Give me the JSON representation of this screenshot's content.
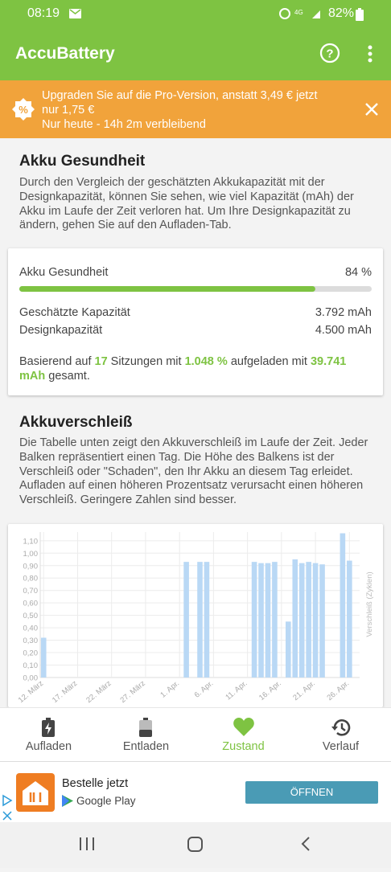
{
  "status_bar": {
    "time": "08:19",
    "battery": "82%"
  },
  "app_bar": {
    "title": "AccuBattery"
  },
  "promo": {
    "line1": "Upgraden Sie auf die Pro-Version, anstatt 3,49 € jetzt nur 1,75 €",
    "line2": "Nur heute - 14h 2m verbleibend"
  },
  "health_section": {
    "title": "Akku Gesundheit",
    "text": "Durch den Vergleich der geschätzten Akkukapazität mit der Designkapazität, können Sie sehen, wie viel Kapazität (mAh) der Akku im Laufe der Zeit verloren hat. Um Ihre Designkapazität zu ändern, gehen Sie auf den Aufladen-Tab."
  },
  "health_card": {
    "label": "Akku Gesundheit",
    "percent": 84,
    "percent_label": "84 %",
    "range": [
      0,
      100
    ],
    "rows": [
      [
        "Geschätzte Kapazität",
        "3.792 mAh"
      ],
      [
        "Designkapazität",
        "4.500 mAh"
      ]
    ],
    "summary": [
      "Basierend auf ",
      "17",
      " Sitzungen mit ",
      "1.048 %",
      " aufgeladen mit ",
      "39.741 mAh",
      " gesamt."
    ]
  },
  "wear_section": {
    "title": "Akkuverschleiß",
    "text": "Die Tabelle unten zeigt den Akkuverschleiß im Laufe der Zeit. Jeder Balken repräsentiert einen Tag. Die Höhe des Balkens ist der Verschleiß oder \"Schaden\", den Ihr Akku an diesem Tag erleidet. Aufladen auf einen höheren Prozentsatz verursacht einen höheren Verschleiß. Geringere Zahlen sind besser."
  },
  "chart_data": {
    "type": "bar",
    "y_label": "Verschleiß (Zyklen)",
    "categories": [
      "12. März",
      null,
      null,
      null,
      null,
      "17. März",
      null,
      null,
      null,
      null,
      "22. März",
      null,
      null,
      null,
      null,
      "27. März",
      null,
      null,
      null,
      null,
      "1. Apr.",
      null,
      null,
      null,
      null,
      "6. Apr.",
      null,
      null,
      null,
      null,
      "11. Apr.",
      null,
      null,
      null,
      null,
      "16. Apr.",
      null,
      null,
      null,
      null,
      "21. Apr.",
      null,
      null,
      null,
      null,
      "26. Apr.",
      null
    ],
    "values": [
      0.32,
      0,
      0,
      0,
      0,
      0,
      0,
      0,
      0,
      0,
      0,
      0,
      0,
      0,
      0,
      0,
      0,
      0,
      0,
      0,
      0,
      0.93,
      0,
      0.93,
      0.93,
      0,
      0,
      0,
      0,
      0,
      0,
      0.93,
      0.92,
      0.92,
      0.93,
      0,
      0.45,
      0.95,
      0.92,
      0.93,
      0.92,
      0.91,
      0,
      0,
      1.16,
      0.94,
      0
    ],
    "color": "#b9d8f5",
    "ylim": [
      0,
      1.17
    ],
    "yticks": [
      {
        "value": 0,
        "label": "0,00"
      },
      {
        "value": 0.1,
        "label": "0,10"
      },
      {
        "value": 0.2,
        "label": "0,20"
      },
      {
        "value": 0.3,
        "label": "0,30"
      },
      {
        "value": 0.4,
        "label": "0,40"
      },
      {
        "value": 0.5,
        "label": "0,50"
      },
      {
        "value": 0.6,
        "label": "0,60"
      },
      {
        "value": 0.7,
        "label": "0,70"
      },
      {
        "value": 0.8,
        "label": "0,80"
      },
      {
        "value": 0.9,
        "label": "0,90"
      },
      {
        "value": 1.0,
        "label": "1,00"
      },
      {
        "value": 1.1,
        "label": "1,10"
      }
    ],
    "grid": true
  },
  "tabs": [
    "Aufladen",
    "Entladen",
    "Zustand",
    "Verlauf"
  ],
  "ad": {
    "title": "Bestelle jetzt",
    "store": "Google Play",
    "button": "ÖFFNEN"
  }
}
